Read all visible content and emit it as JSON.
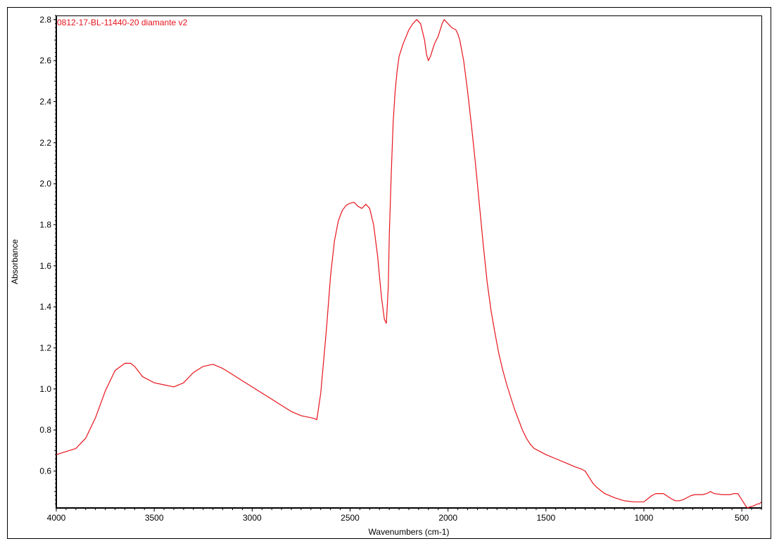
{
  "chart_data": {
    "type": "line",
    "title": "",
    "xlabel": "Wavenumbers (cm-1)",
    "ylabel": "Absorbance",
    "xlim": [
      4000,
      400
    ],
    "ylim": [
      0.42,
      2.82
    ],
    "x_reversed": true,
    "grid": false,
    "x_ticks": [
      4000,
      3500,
      3000,
      2500,
      2000,
      1500,
      1000,
      500
    ],
    "x_tick_labels": [
      "4000",
      "3500",
      "3000",
      "2500",
      "2000",
      "1500",
      "1000",
      "500"
    ],
    "y_ticks": [
      0.6,
      0.8,
      1.0,
      1.2,
      1.4,
      1.6,
      1.8,
      2.0,
      2.2,
      2.4,
      2.6,
      2.8
    ],
    "y_tick_labels": [
      "0.6",
      "0.8",
      "1.0",
      "1.2",
      "1.4",
      "1.6",
      "1.8",
      "2.0",
      "2.2",
      "2.4",
      "2.6",
      "2.8"
    ],
    "series": [
      {
        "name": "0812-17-BL-11440-20 diamante v2",
        "color": "#e8141c",
        "x": [
          4000,
          3900,
          3850,
          3800,
          3750,
          3700,
          3650,
          3620,
          3600,
          3560,
          3500,
          3450,
          3400,
          3350,
          3300,
          3250,
          3200,
          3150,
          3100,
          3050,
          3000,
          2950,
          2900,
          2850,
          2800,
          2750,
          2700,
          2680,
          2670,
          2650,
          2620,
          2600,
          2580,
          2560,
          2540,
          2520,
          2500,
          2480,
          2460,
          2440,
          2420,
          2400,
          2380,
          2360,
          2340,
          2325,
          2315,
          2305,
          2300,
          2290,
          2280,
          2270,
          2260,
          2250,
          2230,
          2200,
          2180,
          2160,
          2140,
          2120,
          2110,
          2100,
          2090,
          2070,
          2050,
          2030,
          2020,
          2000,
          1980,
          1960,
          1950,
          1940,
          1920,
          1900,
          1880,
          1860,
          1840,
          1820,
          1800,
          1780,
          1760,
          1740,
          1720,
          1700,
          1680,
          1660,
          1640,
          1620,
          1600,
          1580,
          1560,
          1540,
          1520,
          1500,
          1450,
          1400,
          1350,
          1320,
          1300,
          1280,
          1260,
          1240,
          1200,
          1150,
          1100,
          1050,
          1000,
          980,
          960,
          940,
          900,
          860,
          840,
          820,
          800,
          780,
          760,
          740,
          700,
          680,
          660,
          640,
          600,
          560,
          540,
          520,
          500,
          480,
          470,
          460,
          440,
          420,
          410,
          400
        ],
        "y": [
          0.68,
          0.71,
          0.76,
          0.86,
          0.99,
          1.09,
          1.125,
          1.125,
          1.11,
          1.06,
          1.03,
          1.02,
          1.01,
          1.03,
          1.08,
          1.11,
          1.12,
          1.1,
          1.07,
          1.04,
          1.01,
          0.98,
          0.95,
          0.92,
          0.89,
          0.87,
          0.86,
          0.855,
          0.85,
          0.98,
          1.3,
          1.55,
          1.72,
          1.82,
          1.87,
          1.895,
          1.905,
          1.91,
          1.89,
          1.88,
          1.9,
          1.88,
          1.8,
          1.65,
          1.45,
          1.34,
          1.32,
          1.5,
          1.75,
          2.05,
          2.3,
          2.45,
          2.55,
          2.62,
          2.68,
          2.75,
          2.78,
          2.8,
          2.78,
          2.7,
          2.63,
          2.6,
          2.62,
          2.68,
          2.72,
          2.78,
          2.8,
          2.78,
          2.76,
          2.75,
          2.73,
          2.7,
          2.6,
          2.45,
          2.28,
          2.1,
          1.9,
          1.7,
          1.52,
          1.38,
          1.27,
          1.17,
          1.09,
          1.02,
          0.96,
          0.9,
          0.85,
          0.8,
          0.76,
          0.73,
          0.71,
          0.7,
          0.69,
          0.68,
          0.66,
          0.64,
          0.62,
          0.61,
          0.6,
          0.57,
          0.54,
          0.52,
          0.49,
          0.47,
          0.455,
          0.45,
          0.45,
          0.465,
          0.48,
          0.49,
          0.49,
          0.465,
          0.455,
          0.455,
          0.46,
          0.47,
          0.48,
          0.485,
          0.485,
          0.49,
          0.5,
          0.49,
          0.485,
          0.485,
          0.49,
          0.49,
          0.46,
          0.43,
          0.42,
          0.425,
          0.43,
          0.44,
          0.44,
          0.45
        ]
      }
    ]
  }
}
